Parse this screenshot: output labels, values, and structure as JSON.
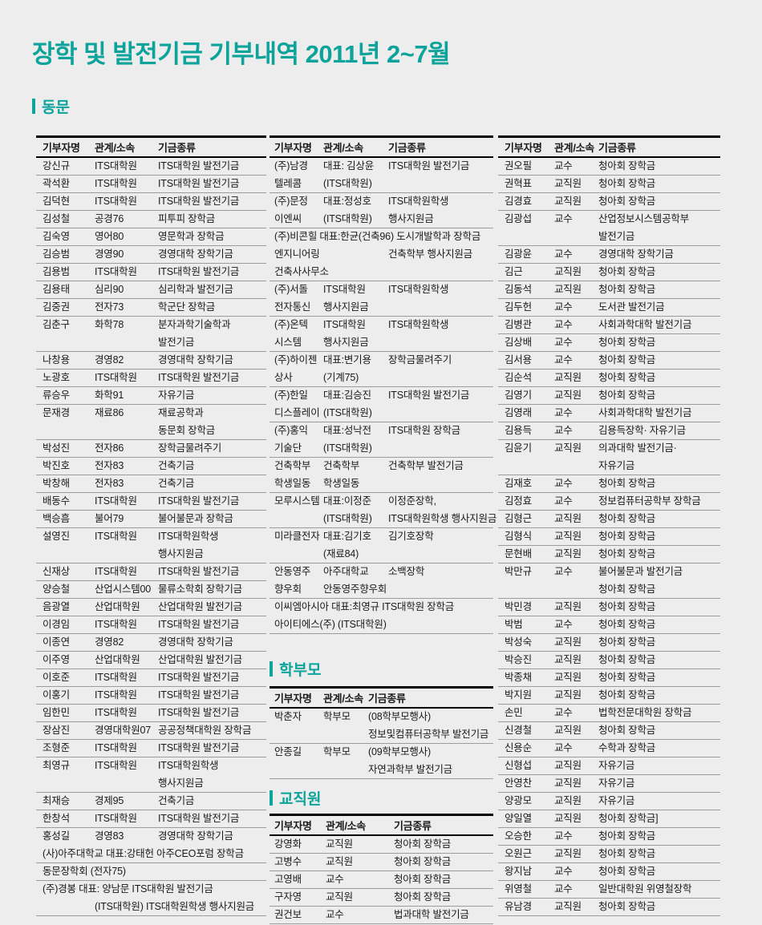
{
  "title": "장학 및 발전기금 기부내역 2011년 2~7월",
  "colors": {
    "accent": "#0ca39b",
    "text": "#1a1a1a",
    "row_line": "#9c9c9c",
    "table_border": "#000000",
    "background": "#ededee"
  },
  "section_titles": {
    "alumni": "동문",
    "parents": "학부모",
    "staff": "교직원"
  },
  "table_header": [
    "기부자명",
    "관계/소속",
    "기금종류"
  ],
  "tables": {
    "alumni_col1": {
      "lines": [
        {
          "c": [
            "강신규",
            "ITS대학원",
            "ITS대학원 발전기금"
          ],
          "b": 1
        },
        {
          "c": [
            "곽석환",
            "ITS대학원",
            "ITS대학원 발전기금"
          ],
          "b": 1
        },
        {
          "c": [
            "김덕현",
            "ITS대학원",
            "ITS대학원 발전기금"
          ],
          "b": 1
        },
        {
          "c": [
            "김성철",
            "공경76",
            "피투피 장학금"
          ],
          "b": 1
        },
        {
          "c": [
            "김숙영",
            "영어80",
            "영문학과 장학금"
          ],
          "b": 1
        },
        {
          "c": [
            "김승범",
            "경영90",
            "경영대학 장학기금"
          ],
          "b": 1
        },
        {
          "c": [
            "김용범",
            "ITS대학원",
            "ITS대학원 발전기금"
          ],
          "b": 1
        },
        {
          "c": [
            "김용태",
            "심리90",
            "심리학과 발전기금"
          ],
          "b": 1
        },
        {
          "c": [
            "김중권",
            "전자73",
            "학군단 장학금"
          ],
          "b": 1
        },
        {
          "c": [
            "김춘구",
            "화학78",
            "분자과학기술학과"
          ]
        },
        {
          "c": [
            "",
            "",
            "발전기금"
          ],
          "b": 1
        },
        {
          "c": [
            "나창용",
            "경영82",
            "경영대학 장학기금"
          ],
          "b": 1
        },
        {
          "c": [
            "노광호",
            "ITS대학원",
            "ITS대학원 발전기금"
          ],
          "b": 1
        },
        {
          "c": [
            "류승우",
            "화학91",
            "자유기금"
          ],
          "b": 1
        },
        {
          "c": [
            "문재경",
            "재료86",
            "재료공학과"
          ]
        },
        {
          "c": [
            "",
            "",
            "동문회 장학금"
          ],
          "b": 1
        },
        {
          "c": [
            "박성진",
            "전자86",
            "장학금물려주기"
          ],
          "b": 1
        },
        {
          "c": [
            "박진호",
            "전자83",
            "건축기금"
          ],
          "b": 1
        },
        {
          "c": [
            "박창해",
            "전자83",
            "건축기금"
          ],
          "b": 1
        },
        {
          "c": [
            "배동수",
            "ITS대학원",
            "ITS대학원 발전기금"
          ],
          "b": 1
        },
        {
          "c": [
            "백승흠",
            "불어79",
            "불어불문과 장학금"
          ],
          "b": 1
        },
        {
          "c": [
            "설영진",
            "ITS대학원",
            "ITS대학원학생"
          ]
        },
        {
          "c": [
            "",
            "",
            "행사지원금"
          ],
          "b": 1
        },
        {
          "c": [
            "신재상",
            "ITS대학원",
            "ITS대학원 발전기금"
          ],
          "b": 1
        },
        {
          "c": [
            "양승철",
            "산업시스템00",
            "물류소학회 장학기금"
          ],
          "b": 1
        },
        {
          "c": [
            "음광열",
            "산업대학원",
            "산업대학원 발전기금"
          ],
          "b": 1
        },
        {
          "c": [
            "이경임",
            "ITS대학원",
            "ITS대학원 발전기금"
          ],
          "b": 1
        },
        {
          "c": [
            "이종연",
            "경영82",
            "경영대학 장학기금"
          ],
          "b": 1
        },
        {
          "c": [
            "이주영",
            "산업대학원",
            "산업대학원 발전기금"
          ],
          "b": 1
        },
        {
          "c": [
            "이호준",
            "ITS대학원",
            "ITS대학원 발전기금"
          ],
          "b": 1
        },
        {
          "c": [
            "이홍기",
            "ITS대학원",
            "ITS대학원 발전기금"
          ],
          "b": 1
        },
        {
          "c": [
            "임한민",
            "ITS대학원",
            "ITS대학원 발전기금"
          ],
          "b": 1
        },
        {
          "c": [
            "장삼진",
            "경영대학원07",
            "공공정책대학원 장학금"
          ],
          "b": 1
        },
        {
          "c": [
            "조형준",
            "ITS대학원",
            "ITS대학원 발전기금"
          ],
          "b": 1
        },
        {
          "c": [
            "최영규",
            "ITS대학원",
            "ITS대학원학생"
          ]
        },
        {
          "c": [
            "",
            "",
            "행사지원금"
          ],
          "b": 1
        },
        {
          "c": [
            "최재승",
            "경제95",
            "건축기금"
          ],
          "b": 1
        },
        {
          "c": [
            "한창석",
            "ITS대학원",
            "ITS대학원 발전기금"
          ],
          "b": 1
        },
        {
          "c": [
            "홍성길",
            "경영83",
            "경영대학 장학기금"
          ]
        },
        {
          "f": "(사)아주대학교 대표:강태헌 아주CEO포럼 장학금",
          "b": 1
        },
        {
          "f": "동문장학회 (전자75)",
          "b": 1
        },
        {
          "f": "(주)경봉 대표: 양남문 ITS대학원 발전기금"
        },
        {
          "f": "(ITS대학원) ITS대학원학생 행사지원금",
          "i": 1,
          "b": 1
        }
      ]
    },
    "alumni_col2": {
      "lines": [
        {
          "c": [
            "(주)남경",
            "대표: 김상윤",
            "ITS대학원 발전기금"
          ]
        },
        {
          "c": [
            "텔레콤",
            "(ITS대학원)",
            ""
          ],
          "b": 1
        },
        {
          "c": [
            "(주)문정",
            "대표:정성호",
            "ITS대학원학생"
          ]
        },
        {
          "c": [
            "이엔씨",
            "(ITS대학원)",
            "행사지원금"
          ],
          "b": 1
        },
        {
          "f": "(주)비콘힐 대표:한균(건축96) 도시개발학과 장학금"
        },
        {
          "c": [
            "엔지니어링",
            "",
            "건축학부 행사지원금"
          ]
        },
        {
          "c": [
            "건축사사무소",
            "",
            ""
          ],
          "b": 1
        },
        {
          "c": [
            "(주)서돌",
            "ITS대학원",
            "ITS대학원학생"
          ]
        },
        {
          "c": [
            "전자통신",
            "행사지원금",
            ""
          ],
          "b": 1
        },
        {
          "c": [
            "(주)온텍",
            "ITS대학원",
            "ITS대학원학생"
          ]
        },
        {
          "c": [
            "시스템",
            "행사지원금",
            ""
          ],
          "b": 1
        },
        {
          "c": [
            "(주)하이젠",
            "대표:변기용",
            "장학금물려주기"
          ]
        },
        {
          "c": [
            "상사",
            "(기계75)",
            ""
          ],
          "b": 1
        },
        {
          "c": [
            "(주)한일",
            "대표:김승진",
            "ITS대학원 발전기금"
          ]
        },
        {
          "c": [
            "디스플레이",
            "(ITS대학원)",
            ""
          ],
          "b": 1
        },
        {
          "c": [
            "(주)홍익",
            "대표:성낙전",
            "ITS대학원 장학금"
          ]
        },
        {
          "c": [
            "기술단",
            "(ITS대학원)",
            ""
          ],
          "b": 1
        },
        {
          "c": [
            "건축학부",
            "건축학부",
            "건축학부 발전기금"
          ]
        },
        {
          "c": [
            "학생일동",
            "학생일동",
            ""
          ],
          "b": 1
        },
        {
          "c": [
            "모루시스템",
            "대표:이정준",
            "이정준장학,"
          ]
        },
        {
          "c": [
            "",
            "(ITS대학원)",
            "ITS대학원학생 행사지원금"
          ],
          "b": 1
        },
        {
          "c": [
            "미라클전자",
            "대표:김기호",
            "김기호장학"
          ]
        },
        {
          "c": [
            "",
            "(재료84)",
            ""
          ],
          "b": 1
        },
        {
          "c": [
            "안동영주",
            "아주대학교",
            "소백장학"
          ]
        },
        {
          "c": [
            "향우회",
            "안동영주향우회",
            ""
          ],
          "b": 1
        },
        {
          "f": "이씨엠아시아 대표:최영규 ITS대학원 장학금"
        },
        {
          "f": "아이티에스(주) (ITS대학원)",
          "b": 1
        }
      ]
    },
    "parents": {
      "lines": [
        {
          "c": [
            "박춘자",
            "학부모",
            "(08학부모행사)"
          ]
        },
        {
          "c": [
            "",
            "",
            "정보및컴퓨터공학부 발전기금"
          ],
          "b": 1
        },
        {
          "c": [
            "안종길",
            "학부모",
            "(09학부모행사)"
          ]
        },
        {
          "c": [
            "",
            "",
            "자연과학부 발전기금"
          ],
          "b": 1
        }
      ]
    },
    "staff_col2": {
      "lines": [
        {
          "c": [
            "강영화",
            "교직원",
            "청아회 장학금"
          ],
          "b": 1
        },
        {
          "c": [
            "고병수",
            "교직원",
            "청아회 장학금"
          ],
          "b": 1
        },
        {
          "c": [
            "고영배",
            "교수",
            "청아회 장학금"
          ],
          "b": 1
        },
        {
          "c": [
            "구자영",
            "교직원",
            "청아회 장학금"
          ],
          "b": 1
        },
        {
          "c": [
            "권건보",
            "교수",
            "법과대학 발전기금"
          ],
          "b": 1
        }
      ]
    },
    "staff_col3": {
      "lines": [
        {
          "c": [
            "권오필",
            "교수",
            "청아회 장학금"
          ],
          "b": 1
        },
        {
          "c": [
            "권혁표",
            "교직원",
            "청아회 장학금"
          ],
          "b": 1
        },
        {
          "c": [
            "김경효",
            "교직원",
            "청아회 장학금"
          ],
          "b": 1
        },
        {
          "c": [
            "김광섭",
            "교수",
            "산업정보시스템공학부"
          ]
        },
        {
          "c": [
            "",
            "",
            "발전기금"
          ],
          "b": 1
        },
        {
          "c": [
            "김광윤",
            "교수",
            "경영대학 장학기금"
          ],
          "b": 1
        },
        {
          "c": [
            "김근",
            "교직원",
            "청아회 장학금"
          ],
          "b": 1
        },
        {
          "c": [
            "김동석",
            "교직원",
            "청아회 장학금"
          ],
          "b": 1
        },
        {
          "c": [
            "김두헌",
            "교수",
            "도서관 발전기금"
          ],
          "b": 1
        },
        {
          "c": [
            "김병관",
            "교수",
            "사회과학대학 발전기금"
          ],
          "b": 1
        },
        {
          "c": [
            "김상배",
            "교수",
            "청아회 장학금"
          ],
          "b": 1
        },
        {
          "c": [
            "김서용",
            "교수",
            "청아회 장학금"
          ],
          "b": 1
        },
        {
          "c": [
            "김순석",
            "교직원",
            "청아회 장학금"
          ],
          "b": 1
        },
        {
          "c": [
            "김영기",
            "교직원",
            "청아회 장학금"
          ],
          "b": 1
        },
        {
          "c": [
            "김영래",
            "교수",
            "사회과학대학 발전기금"
          ],
          "b": 1
        },
        {
          "c": [
            "김용득",
            "교수",
            "김용득장학· 자유기금"
          ],
          "b": 1
        },
        {
          "c": [
            "김윤기",
            "교직원",
            "의과대학 발전기금·"
          ]
        },
        {
          "c": [
            "",
            "",
            "자유기금"
          ],
          "b": 1
        },
        {
          "c": [
            "김재호",
            "교수",
            "청아회 장학금"
          ],
          "b": 1
        },
        {
          "c": [
            "김정효",
            "교수",
            "정보컴퓨터공학부 장학금"
          ],
          "b": 1
        },
        {
          "c": [
            "김형근",
            "교직원",
            "청아회 장학금"
          ],
          "b": 1
        },
        {
          "c": [
            "김형식",
            "교직원",
            "청아회 장학금"
          ],
          "b": 1
        },
        {
          "c": [
            "문현배",
            "교직원",
            "청아회 장학금"
          ],
          "b": 1
        },
        {
          "c": [
            "박만규",
            "교수",
            "불어불문과 발전기금"
          ]
        },
        {
          "c": [
            "",
            "",
            "청아회 장학금"
          ],
          "b": 1
        },
        {
          "c": [
            "박민경",
            "교직원",
            "청아회 장학금"
          ],
          "b": 1
        },
        {
          "c": [
            "박범",
            "교수",
            "청아회 장학금"
          ],
          "b": 1
        },
        {
          "c": [
            "박성숙",
            "교직원",
            "청아회 장학금"
          ],
          "b": 1
        },
        {
          "c": [
            "박승진",
            "교직원",
            "청아회 장학금"
          ],
          "b": 1
        },
        {
          "c": [
            "박종채",
            "교직원",
            "청아회 장학금"
          ],
          "b": 1
        },
        {
          "c": [
            "박지원",
            "교직원",
            "청아회 장학금"
          ],
          "b": 1
        },
        {
          "c": [
            "손민",
            "교수",
            "법학전문대학원 장학금"
          ],
          "b": 1
        },
        {
          "c": [
            "신경철",
            "교직원",
            "청아회 장학금"
          ],
          "b": 1
        },
        {
          "c": [
            "신용순",
            "교수",
            "수학과 장학금"
          ],
          "b": 1
        },
        {
          "c": [
            "신형섭",
            "교직원",
            "자유기금"
          ],
          "b": 1
        },
        {
          "c": [
            "안영찬",
            "교직원",
            "자유기금"
          ],
          "b": 1
        },
        {
          "c": [
            "양광모",
            "교직원",
            "자유기금"
          ],
          "b": 1
        },
        {
          "c": [
            "양일열",
            "교직원",
            "청아회 장학금]"
          ],
          "b": 1
        },
        {
          "c": [
            "오승한",
            "교수",
            "청아회 장학금"
          ],
          "b": 1
        },
        {
          "c": [
            "오원근",
            "교직원",
            "청아회 장학금"
          ],
          "b": 1
        },
        {
          "c": [
            "왕지남",
            "교수",
            "청아회 장학금"
          ],
          "b": 1
        },
        {
          "c": [
            "위영철",
            "교수",
            "일반대학원 위영철장학"
          ],
          "b": 1
        },
        {
          "c": [
            "유남경",
            "교직원",
            "청아회 장학금"
          ],
          "b": 1
        }
      ]
    }
  }
}
